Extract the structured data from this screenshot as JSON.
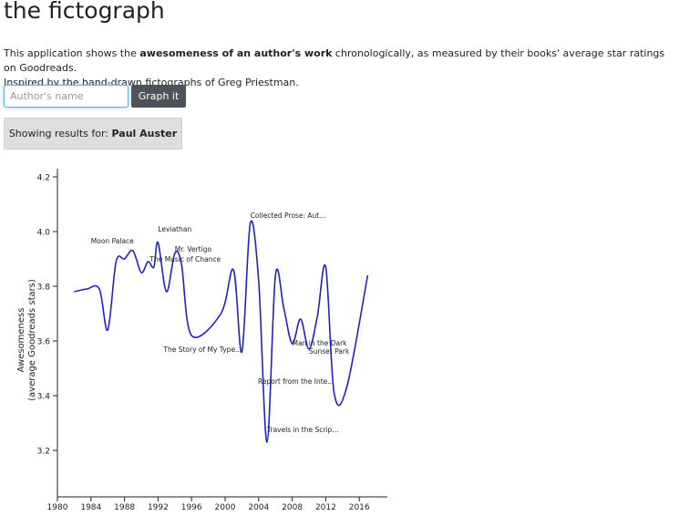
{
  "app": {
    "title": "the fictograph"
  },
  "intro": {
    "lead": "This application shows the ",
    "highlight": "awesomeness of an author's work",
    "rest": " chronologically, as measured by their books' average star ratings on Goodreads.",
    "line2": "Inspired by the hand-drawn fictographs of Greg Priestman."
  },
  "search": {
    "placeholder": "Author's name",
    "value": "",
    "button_label": "Graph it"
  },
  "results": {
    "prefix": "Showing results for: ",
    "author": "Paul Auster"
  },
  "colors": {
    "line": "#2121cc",
    "button": "#4d535a",
    "input_focus": "#66afe9"
  },
  "chart_data": {
    "type": "line",
    "title": "",
    "xlabel": "",
    "ylabel_lines": [
      "Awesomeness",
      "(average Goodreads stars)"
    ],
    "xlim": [
      1980,
      2018
    ],
    "ylim": [
      3.1,
      4.23
    ],
    "xticks": [
      1980,
      1984,
      1988,
      1992,
      1996,
      2000,
      2004,
      2008,
      2012,
      2016
    ],
    "yticks": [
      "4.2",
      "4.0",
      "3.8",
      "3.6",
      "3.4",
      "3.2"
    ],
    "series": [
      {
        "points": [
          {
            "x": 1982.0,
            "y": 3.78
          },
          {
            "x": 1983.5,
            "y": 3.79
          },
          {
            "x": 1985.0,
            "y": 3.79
          },
          {
            "x": 1986.0,
            "y": 3.64
          },
          {
            "x": 1987.0,
            "y": 3.89
          },
          {
            "x": 1988.0,
            "y": 3.9
          },
          {
            "x": 1989.0,
            "y": 3.93
          },
          {
            "x": 1990.0,
            "y": 3.85
          },
          {
            "x": 1990.8,
            "y": 3.89
          },
          {
            "x": 1991.5,
            "y": 3.87
          },
          {
            "x": 1992.0,
            "y": 3.96
          },
          {
            "x": 1993.0,
            "y": 3.78
          },
          {
            "x": 1994.0,
            "y": 3.92
          },
          {
            "x": 1994.8,
            "y": 3.88
          },
          {
            "x": 1996.0,
            "y": 3.62
          },
          {
            "x": 1999.5,
            "y": 3.7
          },
          {
            "x": 2001.0,
            "y": 3.86
          },
          {
            "x": 2002.0,
            "y": 3.56
          },
          {
            "x": 2003.0,
            "y": 4.03
          },
          {
            "x": 2004.0,
            "y": 3.82
          },
          {
            "x": 2005.0,
            "y": 3.23
          },
          {
            "x": 2006.0,
            "y": 3.84
          },
          {
            "x": 2007.0,
            "y": 3.72
          },
          {
            "x": 2008.0,
            "y": 3.59
          },
          {
            "x": 2009.0,
            "y": 3.68
          },
          {
            "x": 2010.0,
            "y": 3.57
          },
          {
            "x": 2011.0,
            "y": 3.69
          },
          {
            "x": 2012.0,
            "y": 3.87
          },
          {
            "x": 2013.0,
            "y": 3.41
          },
          {
            "x": 2014.5,
            "y": 3.43
          },
          {
            "x": 2017.0,
            "y": 3.84
          }
        ]
      }
    ],
    "annotations": [
      {
        "text": "Moon Palace",
        "x": 1989.0,
        "y": 3.93,
        "dx": -46,
        "dy": -8
      },
      {
        "text": "Leviathan",
        "x": 1992.0,
        "y": 3.96,
        "dx": 0,
        "dy": -12
      },
      {
        "text": "Mr. Vertigo",
        "x": 1994.0,
        "y": 3.92,
        "dx": 0,
        "dy": -2
      },
      {
        "text": "The Music of Chance",
        "x": 1990.8,
        "y": 3.89,
        "dx": 2,
        "dy": 0
      },
      {
        "text": "Collected Prose: Aut...",
        "x": 2003.0,
        "y": 4.03,
        "dx": 0,
        "dy": -6
      },
      {
        "text": "The Story of My Type...",
        "x": 2002.0,
        "y": 3.56,
        "dx": -86,
        "dy": 0
      },
      {
        "text": "Man in the Dark",
        "x": 2008.0,
        "y": 3.59,
        "dx": 0,
        "dy": 2
      },
      {
        "text": "Sunset Park",
        "x": 2010.0,
        "y": 3.57,
        "dx": 0,
        "dy": 5
      },
      {
        "text": "Report from the Inte...",
        "x": 2005.0,
        "y": 3.23,
        "dx": -10,
        "dy": -64
      },
      {
        "text": "Travels in the Scrip...",
        "x": 2005.0,
        "y": 3.23,
        "dx": 0,
        "dy": -11
      }
    ],
    "grid": false,
    "legend": "none"
  }
}
